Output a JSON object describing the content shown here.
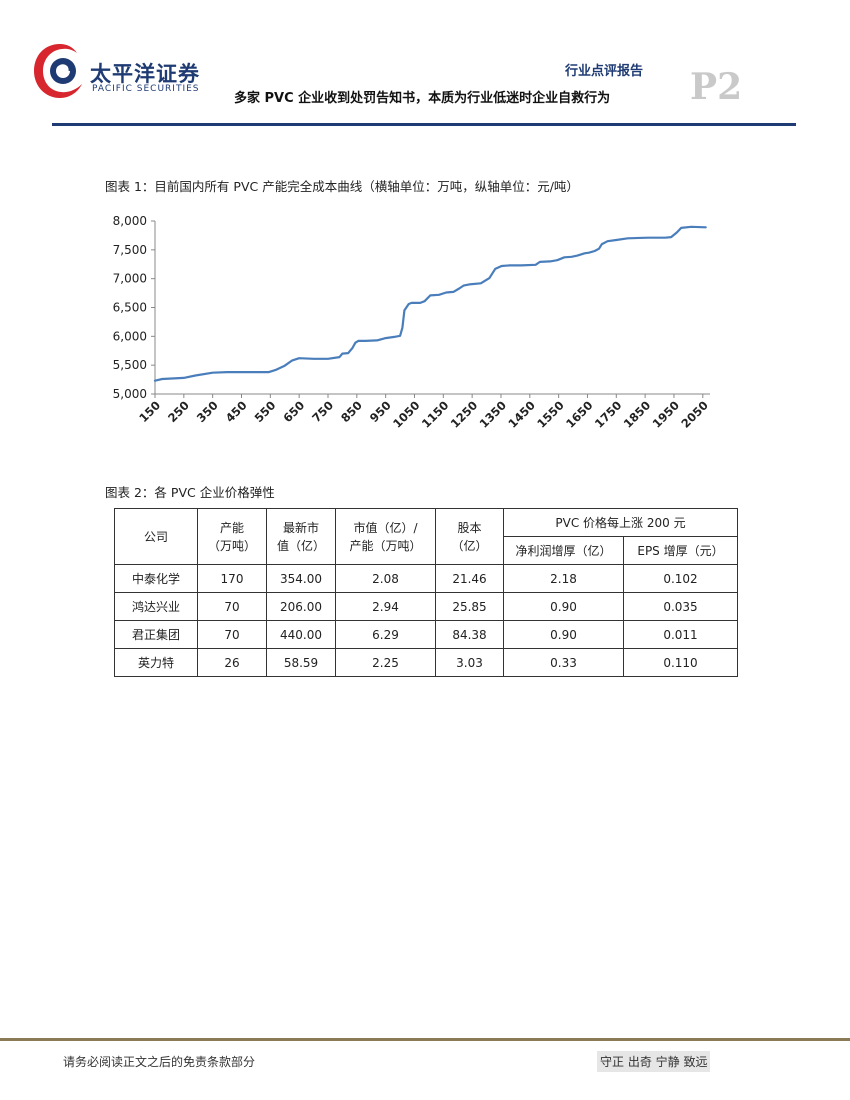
{
  "header": {
    "logo_cn": "太平洋证券",
    "logo_en": "PACIFIC SECURITIES",
    "report_type": "行业点评报告",
    "page_number": "P2",
    "title": "多家 PVC 企业收到处罚告知书，本质为行业低迷时企业自救行为"
  },
  "figure1": {
    "caption": "图表 1：目前国内所有 PVC 产能完全成本曲线（横轴单位：万吨，纵轴单位：元/吨）"
  },
  "chart_data": {
    "type": "line",
    "title": "目前国内所有 PVC 产能完全成本曲线",
    "xlabel": "万吨",
    "ylabel": "元/吨",
    "x_ticks": [
      150,
      250,
      350,
      450,
      550,
      650,
      750,
      850,
      950,
      1050,
      1150,
      1250,
      1350,
      1450,
      1550,
      1650,
      1750,
      1850,
      1950,
      2050
    ],
    "y_ticks": [
      "5,000",
      "5,500",
      "6,000",
      "6,500",
      "7,000",
      "7,500",
      "8,000"
    ],
    "xlim": [
      150,
      2075
    ],
    "ylim": [
      5000,
      8000
    ],
    "series": [
      {
        "name": "完全成本",
        "color": "#4a7ebb",
        "x": [
          150,
          175,
          250,
          290,
          350,
          400,
          450,
          500,
          545,
          570,
          600,
          625,
          650,
          700,
          750,
          790,
          800,
          820,
          835,
          845,
          855,
          880,
          920,
          950,
          980,
          1000,
          1008,
          1015,
          1030,
          1040,
          1060,
          1070,
          1085,
          1105,
          1135,
          1160,
          1185,
          1205,
          1220,
          1240,
          1280,
          1310,
          1330,
          1352,
          1380,
          1420,
          1470,
          1485,
          1520,
          1545,
          1570,
          1595,
          1615,
          1640,
          1655,
          1675,
          1690,
          1700,
          1720,
          1750,
          1790,
          1860,
          1920,
          1940,
          1960,
          1975,
          2010,
          2060
        ],
        "y": [
          5230,
          5260,
          5280,
          5320,
          5370,
          5380,
          5380,
          5380,
          5380,
          5420,
          5490,
          5580,
          5620,
          5610,
          5610,
          5640,
          5700,
          5710,
          5800,
          5890,
          5920,
          5920,
          5930,
          5970,
          5990,
          6010,
          6150,
          6450,
          6560,
          6580,
          6580,
          6580,
          6610,
          6710,
          6720,
          6760,
          6770,
          6830,
          6880,
          6900,
          6920,
          7010,
          7170,
          7220,
          7230,
          7230,
          7240,
          7290,
          7300,
          7320,
          7370,
          7380,
          7400,
          7440,
          7450,
          7480,
          7520,
          7600,
          7650,
          7670,
          7700,
          7710,
          7710,
          7720,
          7800,
          7880,
          7900,
          7890
        ]
      }
    ]
  },
  "figure2": {
    "caption": "图表 2：各 PVC 企业价格弹性",
    "headers": {
      "company": "公司",
      "capacity_line1": "产能",
      "capacity_line2": "（万吨）",
      "mktcap_line1": "最新市",
      "mktcap_line2": "值（亿）",
      "ratio_line1": "市值（亿）/",
      "ratio_line2": "产能（万吨）",
      "shares_line1": "股本",
      "shares_line2": "（亿）",
      "group": "PVC 价格每上涨 200 元",
      "profit": "净利润增厚（亿）",
      "eps": "EPS 增厚（元）"
    },
    "rows": [
      {
        "company": "中泰化学",
        "capacity": "170",
        "mktcap": "354.00",
        "ratio": "2.08",
        "shares": "21.46",
        "profit": "2.18",
        "eps": "0.102"
      },
      {
        "company": "鸿达兴业",
        "capacity": "70",
        "mktcap": "206.00",
        "ratio": "2.94",
        "shares": "25.85",
        "profit": "0.90",
        "eps": "0.035"
      },
      {
        "company": "君正集团",
        "capacity": "70",
        "mktcap": "440.00",
        "ratio": "6.29",
        "shares": "84.38",
        "profit": "0.90",
        "eps": "0.011"
      },
      {
        "company": "英力特",
        "capacity": "26",
        "mktcap": "58.59",
        "ratio": "2.25",
        "shares": "3.03",
        "profit": "0.33",
        "eps": "0.110"
      }
    ]
  },
  "footer": {
    "disclaimer": "请务必阅读正文之后的免责条款部分",
    "motto": "守正 出奇 宁静 致远"
  },
  "colors": {
    "brand_navy": "#1f3b73",
    "logo_red": "#d7262e",
    "footer_rule": "#8b7a56"
  }
}
